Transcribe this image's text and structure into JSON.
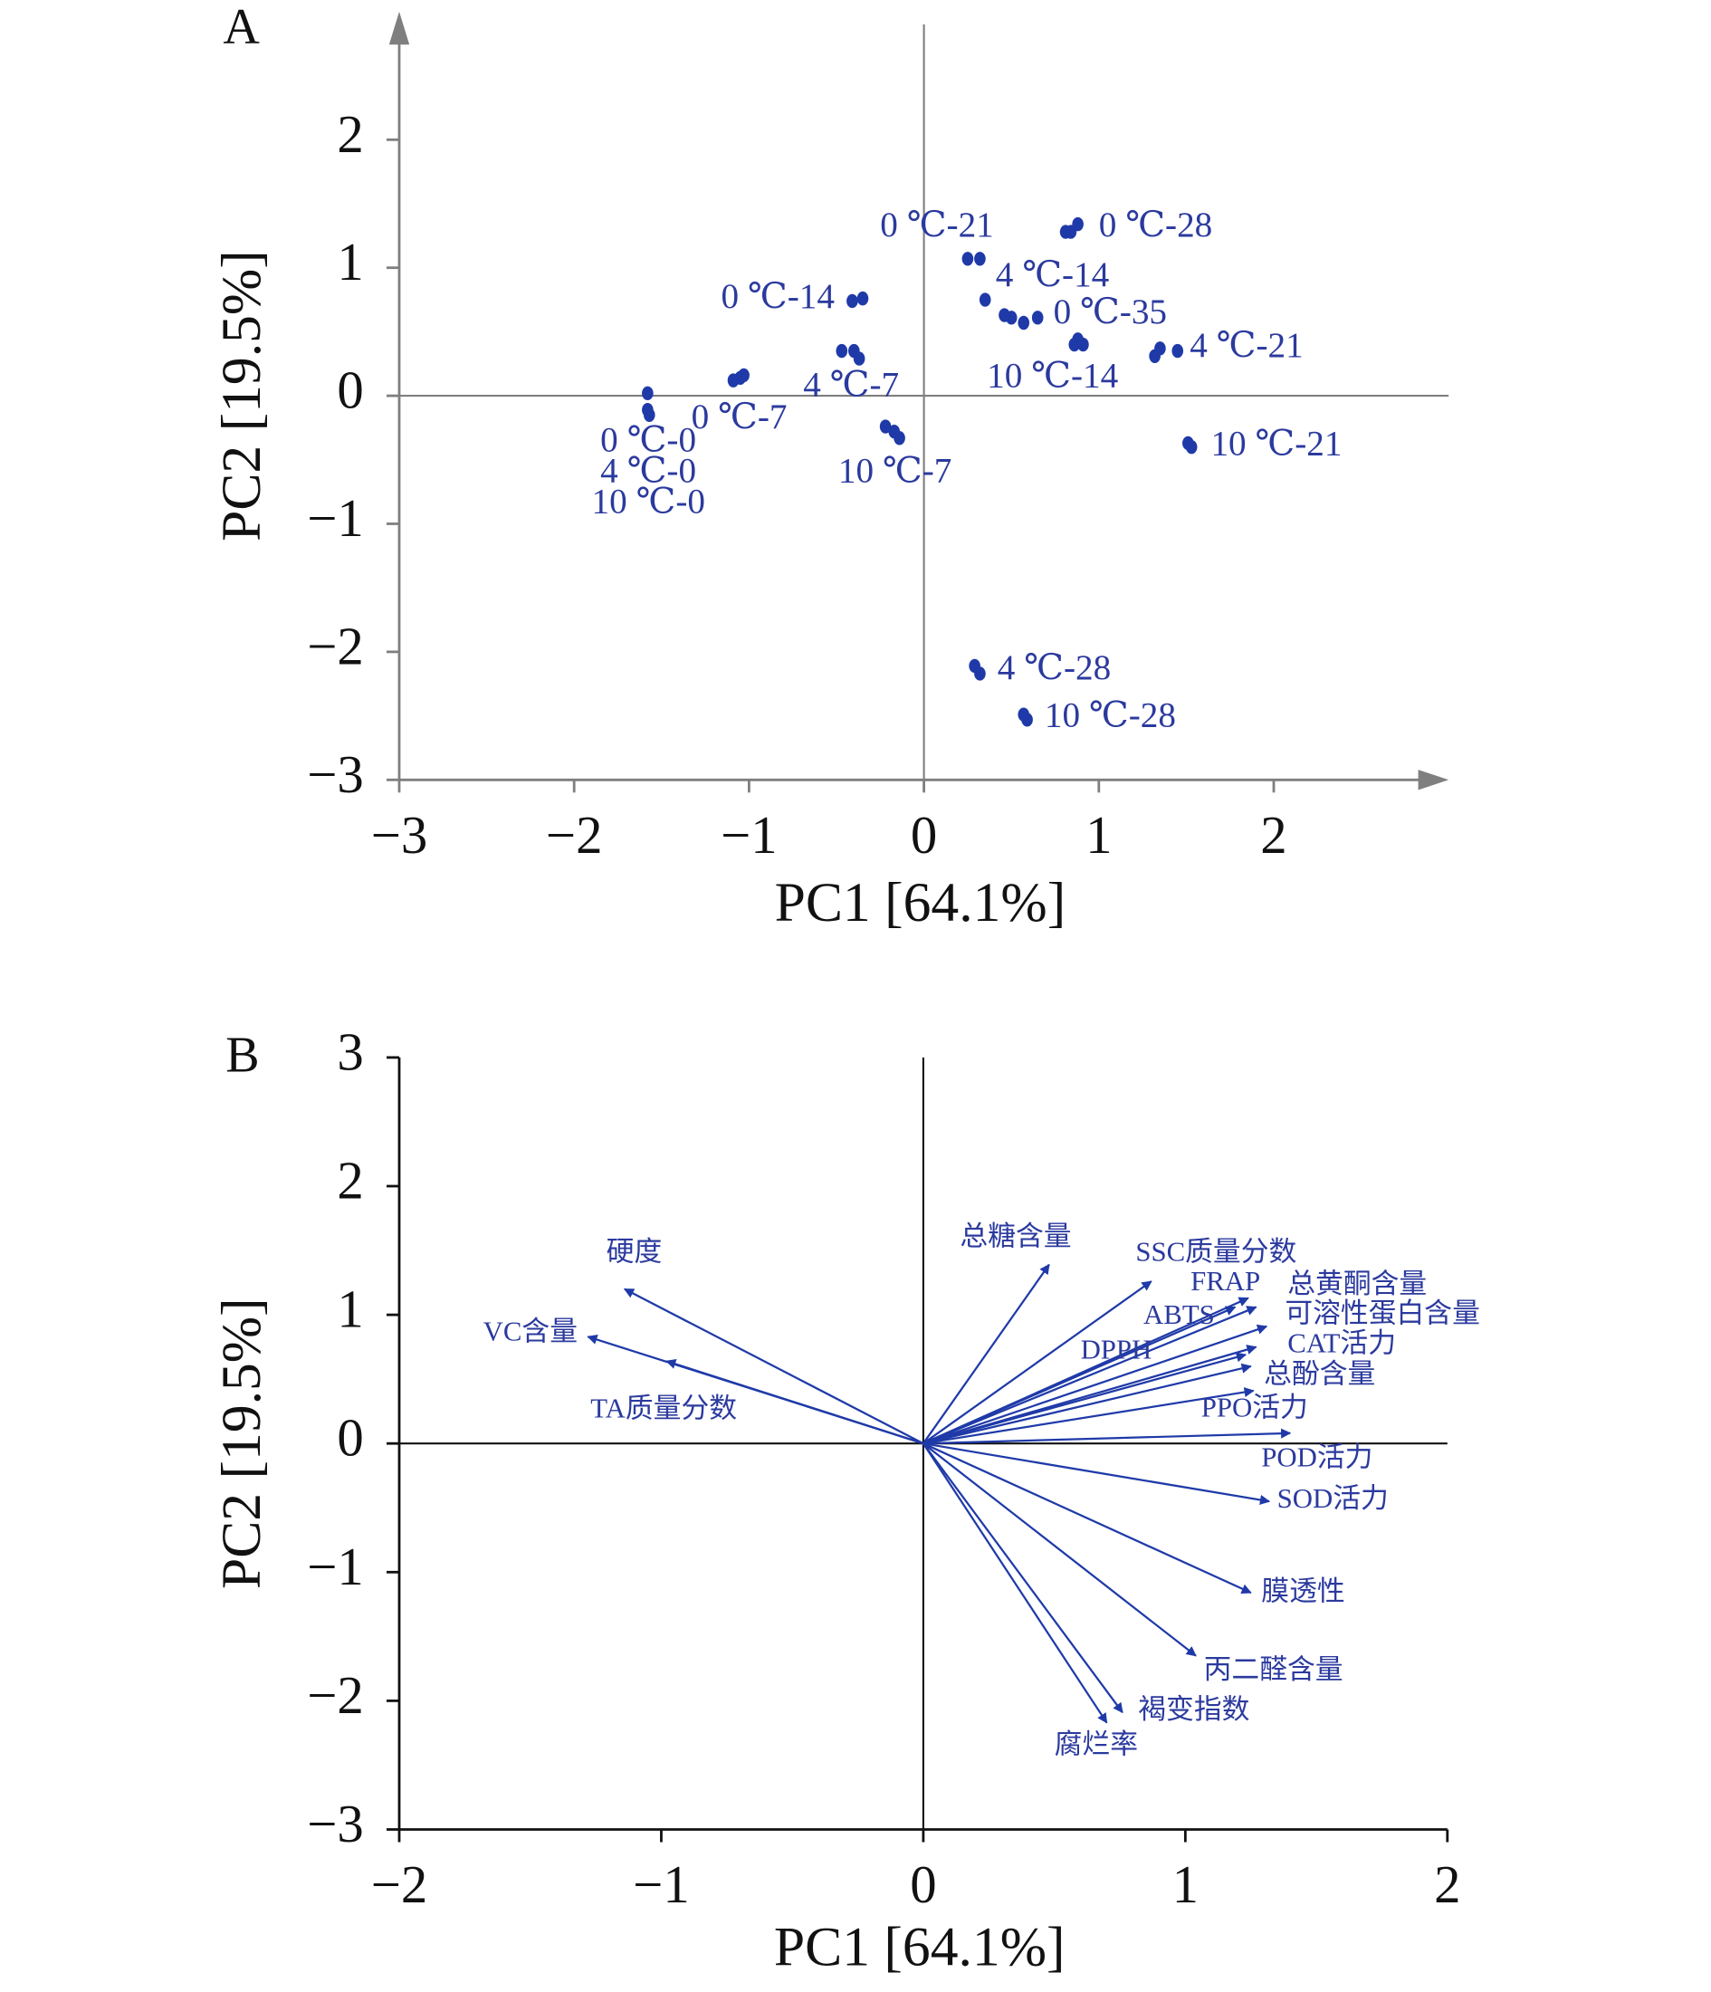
{
  "chart_data": [
    {
      "type": "scatter",
      "title": "A",
      "xlabel": "PC1 [64.1%]",
      "ylabel": "PC2 [19.5%]",
      "color": "#1f3aa8",
      "xlim": [
        -3,
        3
      ],
      "ylim": [
        -3,
        3
      ],
      "xticks": [
        {
          "value": -3,
          "label": "−3"
        },
        {
          "value": -2,
          "label": "−2"
        },
        {
          "value": -1,
          "label": "−1"
        },
        0,
        1,
        2
      ],
      "yticks": [
        {
          "value": -3,
          "label": "−3"
        },
        {
          "value": -2,
          "label": "−2"
        },
        {
          "value": -1,
          "label": "−1"
        },
        0,
        1,
        2
      ],
      "x": [
        -1.58,
        -1.58,
        -1.57,
        -1.09,
        -1.05,
        -1.03,
        -0.47,
        -0.4,
        -0.37,
        -0.41,
        -0.35,
        -0.22,
        -0.17,
        -0.14,
        0.25,
        0.32,
        0.35,
        0.46,
        0.5,
        0.57,
        0.65,
        0.81,
        0.84,
        0.88,
        0.86,
        0.88,
        0.91,
        1.32,
        1.35,
        1.45,
        1.51,
        1.53,
        0.29,
        0.32,
        0.57,
        0.59
      ],
      "values": [
        0.02,
        -0.11,
        -0.15,
        0.12,
        0.14,
        0.16,
        0.35,
        0.35,
        0.29,
        0.74,
        0.76,
        -0.24,
        -0.28,
        -0.33,
        1.07,
        1.07,
        0.75,
        0.63,
        0.61,
        0.57,
        0.61,
        1.28,
        1.28,
        1.34,
        0.4,
        0.44,
        0.4,
        0.31,
        0.37,
        0.35,
        -0.37,
        -0.4,
        -2.11,
        -2.17,
        -2.49,
        -2.53
      ],
      "annotations": [
        {
          "text": "0 ℃-21",
          "x": -0.25,
          "y": 1.31
        },
        {
          "text": "0 ℃-28",
          "x": 1.0,
          "y": 1.31
        },
        {
          "text": "4 ℃-14",
          "x": 0.41,
          "y": 0.92
        },
        {
          "text": "0 ℃-14",
          "x": -1.16,
          "y": 0.75
        },
        {
          "text": "0 ℃-35",
          "x": 0.74,
          "y": 0.63
        },
        {
          "text": "4 ℃-21",
          "x": 1.52,
          "y": 0.37
        },
        {
          "text": "10 ℃-14",
          "x": 0.36,
          "y": 0.13
        },
        {
          "text": "4 ℃-7",
          "x": -0.69,
          "y": 0.06
        },
        {
          "text": "0 ℃-7",
          "x": -1.33,
          "y": -0.19
        },
        {
          "text": "0 ℃-0",
          "x": -1.85,
          "y": -0.37
        },
        {
          "text": "4 ℃-0",
          "x": -1.85,
          "y": -0.61
        },
        {
          "text": "10 ℃-0",
          "x": -1.9,
          "y": -0.85
        },
        {
          "text": "10 ℃-7",
          "x": -0.49,
          "y": -0.61
        },
        {
          "text": "10 ℃-21",
          "x": 1.64,
          "y": -0.4
        },
        {
          "text": "4 ℃-28",
          "x": 0.42,
          "y": -2.15
        },
        {
          "text": "10 ℃-28",
          "x": 0.69,
          "y": -2.52
        }
      ]
    },
    {
      "type": "biplot",
      "title": "B",
      "xlabel": "PC1 [64.1%]",
      "ylabel": "PC2 [19.5%]",
      "color": "#1f3aa8",
      "xlim": [
        -2,
        2
      ],
      "ylim": [
        -3,
        3
      ],
      "xticks": [
        {
          "value": -2,
          "label": "−2"
        },
        {
          "value": -1,
          "label": "−1"
        },
        0,
        1,
        2
      ],
      "yticks": [
        {
          "value": -3,
          "label": "−3"
        },
        {
          "value": -2,
          "label": "−2"
        },
        {
          "value": -1,
          "label": "−1"
        },
        0,
        1,
        2,
        3
      ],
      "vectors": [
        {
          "name": "硬度",
          "x": -1.14,
          "y": 1.2,
          "label_x": -1.21,
          "label_y": 1.47
        },
        {
          "name": "VC含量",
          "x": -1.28,
          "y": 0.83,
          "label_x": -1.68,
          "label_y": 0.85
        },
        {
          "name": "TA质量分数",
          "x": -0.98,
          "y": 0.64,
          "label_x": -1.27,
          "label_y": 0.25
        },
        {
          "name": "总糖含量",
          "x": 0.48,
          "y": 1.39,
          "label_x": 0.14,
          "label_y": 1.59
        },
        {
          "name": "SSC质量分数",
          "x": 0.87,
          "y": 1.26,
          "label_x": 0.81,
          "label_y": 1.47
        },
        {
          "name": "FRAP",
          "x": 1.24,
          "y": 1.13,
          "label_x": 1.02,
          "label_y": 1.24
        },
        {
          "name": "ABTS",
          "x": 1.19,
          "y": 1.06,
          "label_x": 0.84,
          "label_y": 0.98
        },
        {
          "name": "总黄酮含量",
          "x": 1.27,
          "y": 1.06,
          "label_x": 1.39,
          "label_y": 1.22
        },
        {
          "name": "可溶性蛋白含量",
          "x": 1.31,
          "y": 0.91,
          "label_x": 1.38,
          "label_y": 0.99
        },
        {
          "name": "DPPH",
          "x": 1.23,
          "y": 0.69,
          "label_x": 0.6,
          "label_y": 0.71
        },
        {
          "name": "CAT活力",
          "x": 1.27,
          "y": 0.75,
          "label_x": 1.39,
          "label_y": 0.76
        },
        {
          "name": "总酚含量",
          "x": 1.25,
          "y": 0.6,
          "label_x": 1.3,
          "label_y": 0.52
        },
        {
          "name": "PPO活力",
          "x": 1.26,
          "y": 0.41,
          "label_x": 1.06,
          "label_y": 0.26
        },
        {
          "name": "POD活力",
          "x": 1.4,
          "y": 0.08,
          "label_x": 1.29,
          "label_y": -0.13
        },
        {
          "name": "SOD活力",
          "x": 1.32,
          "y": -0.45,
          "label_x": 1.35,
          "label_y": -0.45
        },
        {
          "name": "膜透性",
          "x": 1.25,
          "y": -1.16,
          "label_x": 1.29,
          "label_y": -1.17
        },
        {
          "name": "丙二醛含量",
          "x": 1.04,
          "y": -1.65,
          "label_x": 1.07,
          "label_y": -1.78
        },
        {
          "name": "褐变指数",
          "x": 0.76,
          "y": -2.09,
          "label_x": 0.82,
          "label_y": -2.09
        },
        {
          "name": "腐烂率",
          "x": 0.7,
          "y": -2.17,
          "label_x": 0.5,
          "label_y": -2.36
        }
      ]
    }
  ]
}
